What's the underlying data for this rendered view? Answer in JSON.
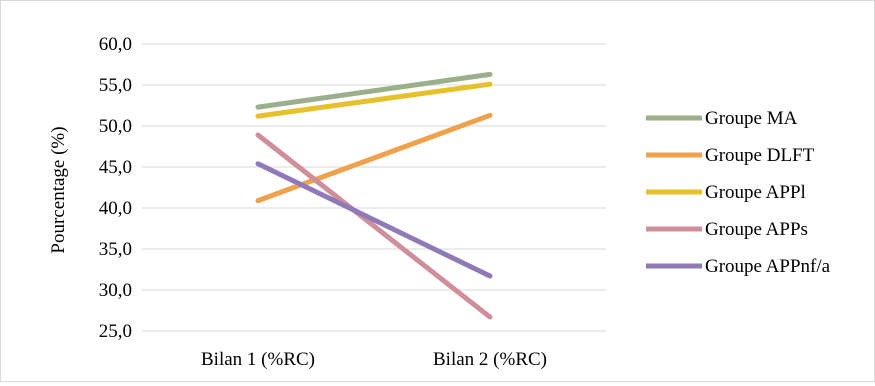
{
  "chart_data": {
    "type": "line",
    "title": "",
    "xlabel": "",
    "ylabel": "Pourcentage (%)",
    "categories": [
      "Bilan 1 (%RC)",
      "Bilan 2 (%RC)"
    ],
    "ylim": [
      25,
      60
    ],
    "yticks": [
      25,
      30,
      35,
      40,
      45,
      50,
      55,
      60
    ],
    "ytick_labels": [
      "25,0",
      "30,0",
      "35,0",
      "40,0",
      "45,0",
      "50,0",
      "55,0",
      "60,0"
    ],
    "grid": true,
    "legend_position": "right",
    "series": [
      {
        "name": "Groupe MA",
        "values": [
          52.3,
          56.3
        ],
        "color": "#9bb08a"
      },
      {
        "name": "Groupe DLFT",
        "values": [
          40.9,
          51.3
        ],
        "color": "#f0a14c"
      },
      {
        "name": "Groupe APPl",
        "values": [
          51.2,
          55.1
        ],
        "color": "#e6c12b"
      },
      {
        "name": "Groupe APPs",
        "values": [
          48.9,
          26.7
        ],
        "color": "#d08d9c"
      },
      {
        "name": "Groupe APPnf/a",
        "values": [
          45.4,
          31.7
        ],
        "color": "#8f79b8"
      }
    ]
  }
}
